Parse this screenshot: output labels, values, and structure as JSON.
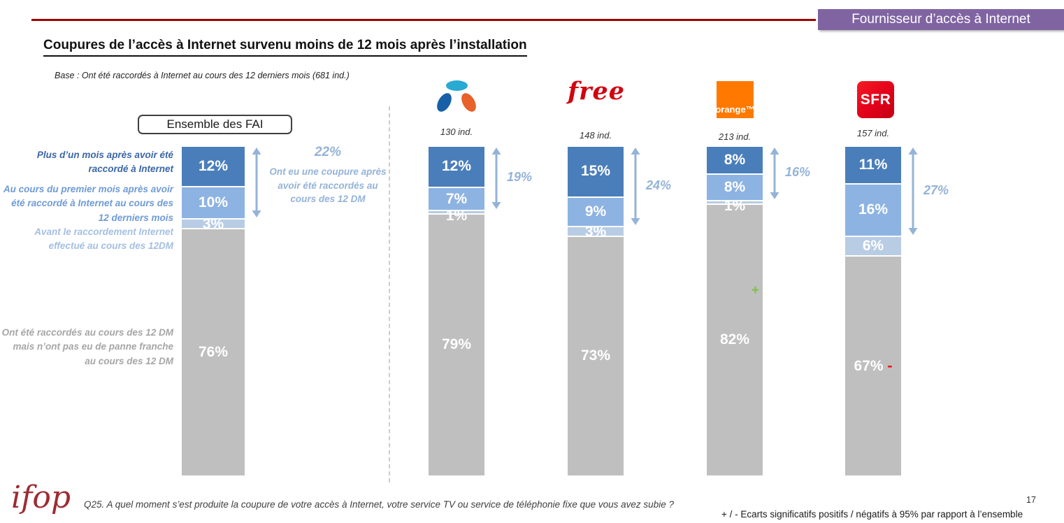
{
  "header": {
    "banner_label": "Fournisseur d’accès à Internet",
    "banner_color": "#8064A2"
  },
  "title": "Coupures de l’accès à Internet survenu moins de 12 mois après l’installation",
  "base_note": "Base : Ont été raccordés à Internet au cours des 12 derniers mois (681 ind.)",
  "ensemble_box_label": "Ensemble des FAI",
  "segment_legend": [
    {
      "label": "Plus d’un mois après avoir été raccordé à Internet",
      "color": "#4A7EBB",
      "text_color": "#3A67A5"
    },
    {
      "label": "Au cours du premier mois après avoir été raccordé à Internet au cours des 12 derniers mois",
      "color": "#8DB3E2",
      "text_color": "#6F9BD6"
    },
    {
      "label": "Avant le raccordement Internet effectué au cours des 12DM",
      "color": "#B8CCE4",
      "text_color": "#A4BFE2"
    },
    {
      "label": "Ont été raccordés au cours des 12 DM mais n’ont pas eu de panne franche au cours des 12 DM",
      "color": "#BFBFBF",
      "text_color": "#A6A6A6"
    }
  ],
  "ensemble_annotation": {
    "value": "22%",
    "text": "Ont eu une coupure après avoir été raccordés au cours des 12 DM"
  },
  "chart_data": {
    "type": "bar",
    "stacked": true,
    "unit": "%",
    "categories": [
      "Plus d’un mois après avoir été raccordé à Internet",
      "Au cours du premier mois après avoir été raccordé à Internet au cours des 12 derniers mois",
      "Avant le raccordement Internet effectué au cours des 12DM",
      "Ont été raccordés au cours des 12 DM mais n’ont pas eu de panne franche au cours des 12 DM"
    ],
    "segment_colors": [
      "#4A7EBB",
      "#8DB3E2",
      "#B8CCE4",
      "#BFBFBF"
    ],
    "arrow_color": "#95B3D7",
    "series": [
      {
        "name": "Ensemble des FAI",
        "sample": "681 ind.",
        "values": [
          12,
          10,
          3,
          76
        ],
        "coupure_total": "22%",
        "significance": ""
      },
      {
        "name": "Bouygues Telecom",
        "sample": "130 ind.",
        "values": [
          12,
          7,
          1,
          79
        ],
        "coupure_total": "19%",
        "significance": ""
      },
      {
        "name": "Free",
        "sample": "148 ind.",
        "values": [
          15,
          9,
          3,
          73
        ],
        "coupure_total": "24%",
        "significance": ""
      },
      {
        "name": "Orange",
        "sample": "213 ind.",
        "values": [
          8,
          8,
          1,
          82
        ],
        "coupure_total": "16%",
        "significance": "+"
      },
      {
        "name": "SFR",
        "sample": "157 ind.",
        "values": [
          11,
          16,
          6,
          67
        ],
        "coupure_total": "27%",
        "significance": "-"
      }
    ]
  },
  "logos": {
    "free_text": "free",
    "orange_text": "orange™",
    "sfr_text": "SFR",
    "ifop_text": "ifop"
  },
  "significance_colors": {
    "plus": "#7DC242",
    "minus": "#FF0000"
  },
  "footer": {
    "question": "Q25. A quel moment s’est produite la coupure de votre accès à Internet, votre service TV ou service de téléphonie fixe que vous avez subie ?",
    "significance_note": "+ / - Ecarts significatifs positifs / négatifs à 95% par rapport à l’ensemble",
    "page_number": "17"
  }
}
